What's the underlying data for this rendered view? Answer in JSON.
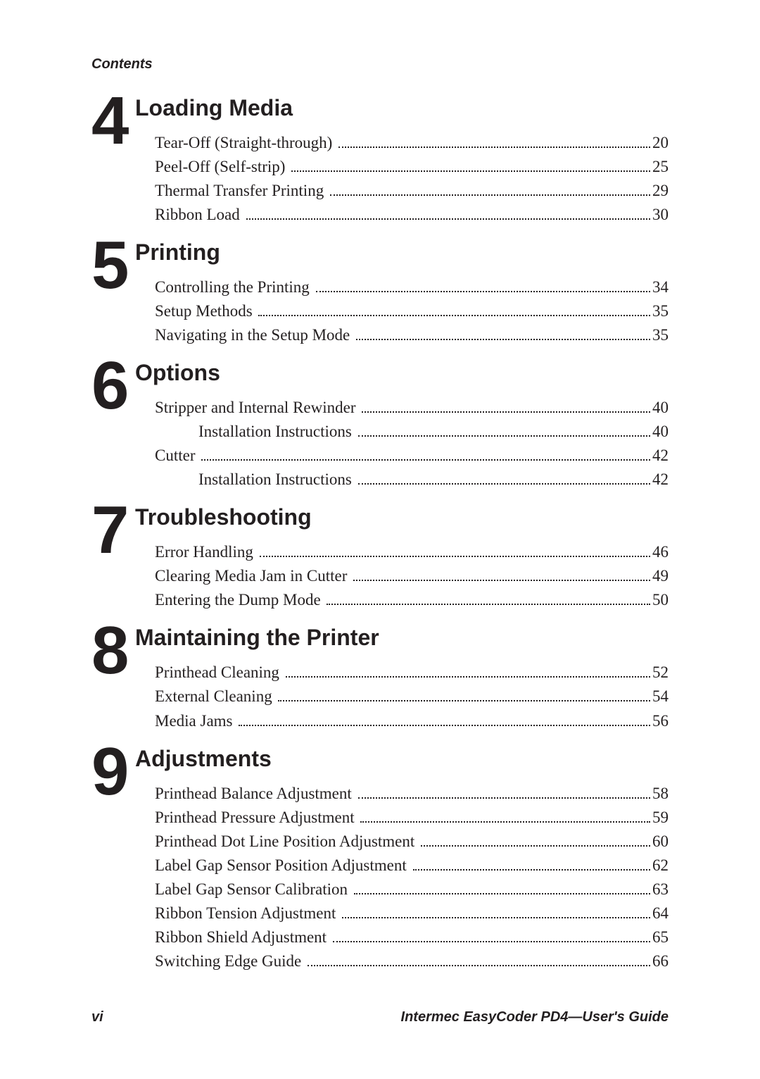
{
  "colors": {
    "text": "#231f20",
    "background": "#ffffff"
  },
  "typography": {
    "serif_family": "Adobe Garamond Pro",
    "sans_family": "Myriad Pro",
    "running_head_size_pt": 15,
    "chapter_num_size_pt": 72,
    "chapter_title_size_pt": 24,
    "toc_entry_size_pt": 17,
    "footer_size_pt": 15
  },
  "running_head": "Contents",
  "chapters": [
    {
      "num": "4",
      "title": "Loading Media",
      "entries": [
        {
          "label": "Tear-Off (Straight-through)",
          "page": "20",
          "level": 1
        },
        {
          "label": "Peel-Off (Self-strip)",
          "page": "25",
          "level": 1
        },
        {
          "label": "Thermal Transfer Printing",
          "page": "29",
          "level": 1
        },
        {
          "label": "Ribbon Load",
          "page": "30",
          "level": 1
        }
      ]
    },
    {
      "num": "5",
      "title": "Printing",
      "entries": [
        {
          "label": "Controlling the Printing",
          "page": "34",
          "level": 1
        },
        {
          "label": "Setup Methods",
          "page": "35",
          "level": 1
        },
        {
          "label": "Navigating in the Setup Mode",
          "page": "35",
          "level": 1
        }
      ]
    },
    {
      "num": "6",
      "title": "Options",
      "entries": [
        {
          "label": "Stripper and Internal Rewinder",
          "page": "40",
          "level": 1
        },
        {
          "label": "Installation Instructions",
          "page": "40",
          "level": 2
        },
        {
          "label": "Cutter",
          "page": "42",
          "level": 1
        },
        {
          "label": "Installation Instructions",
          "page": "42",
          "level": 2
        }
      ]
    },
    {
      "num": "7",
      "title": "Troubleshooting",
      "entries": [
        {
          "label": "Error Handling",
          "page": "46",
          "level": 1
        },
        {
          "label": "Clearing Media Jam in Cutter",
          "page": "49",
          "level": 1
        },
        {
          "label": "Entering the Dump Mode",
          "page": "50",
          "level": 1
        }
      ]
    },
    {
      "num": "8",
      "title": "Maintaining the Printer",
      "entries": [
        {
          "label": "Printhead Cleaning",
          "page": "52",
          "level": 1
        },
        {
          "label": "External Cleaning",
          "page": "54",
          "level": 1
        },
        {
          "label": "Media Jams",
          "page": "56",
          "level": 1
        }
      ]
    },
    {
      "num": "9",
      "title": "Adjustments",
      "entries": [
        {
          "label": "Printhead Balance Adjustment",
          "page": "58",
          "level": 1
        },
        {
          "label": "Printhead Pressure Adjustment",
          "page": "59",
          "level": 1
        },
        {
          "label": "Printhead Dot Line Position Adjustment",
          "page": "60",
          "level": 1
        },
        {
          "label": "Label Gap Sensor Position Adjustment",
          "page": "62",
          "level": 1
        },
        {
          "label": "Label Gap Sensor Calibration",
          "page": "63",
          "level": 1
        },
        {
          "label": "Ribbon Tension Adjustment",
          "page": "64",
          "level": 1
        },
        {
          "label": "Ribbon Shield Adjustment",
          "page": "65",
          "level": 1
        },
        {
          "label": "Switching Edge Guide",
          "page": "66",
          "level": 1
        }
      ]
    }
  ],
  "footer": {
    "page_num": "vi",
    "doc_title": "Intermec EasyCoder PD4—User's Guide"
  }
}
